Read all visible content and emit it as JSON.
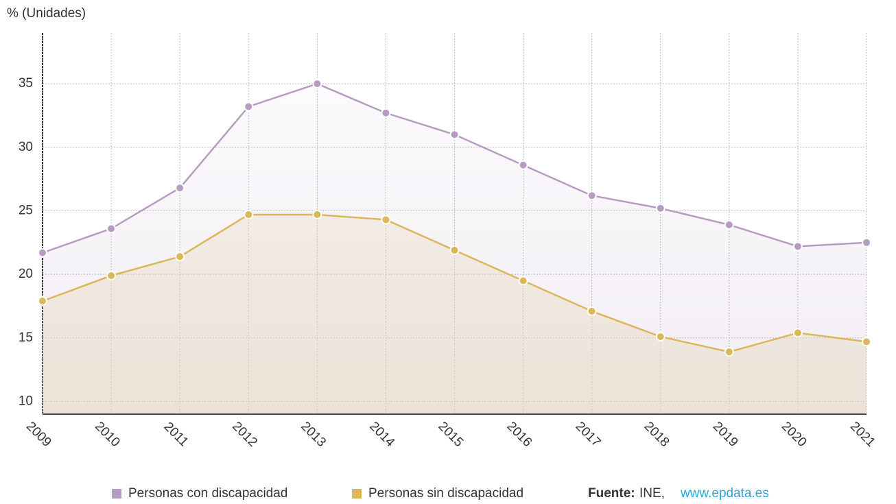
{
  "chart_data": {
    "type": "line",
    "y_label": "% (Unidades)",
    "categories": [
      "2009",
      "2010",
      "2011",
      "2012",
      "2013",
      "2014",
      "2015",
      "2016",
      "2017",
      "2018",
      "2019",
      "2020",
      "2021"
    ],
    "series": [
      {
        "name": "Personas con discapacidad",
        "color": "#b79cc1",
        "values": [
          21.7,
          23.6,
          26.8,
          33.2,
          35.0,
          32.7,
          31.0,
          28.6,
          26.2,
          25.2,
          23.9,
          22.2,
          22.5
        ]
      },
      {
        "name": "Personas sin discapacidad",
        "color": "#d9b75a",
        "values": [
          17.9,
          19.9,
          21.4,
          24.7,
          24.7,
          24.3,
          21.9,
          19.5,
          17.1,
          15.1,
          13.9,
          15.4,
          14.7
        ]
      }
    ],
    "ylim": [
      9,
      39
    ],
    "yticks": [
      10,
      15,
      20,
      25,
      30,
      35
    ],
    "grid": true,
    "source_label": "Fuente:",
    "source": "INE,",
    "source_link": "www.epdata.es"
  }
}
